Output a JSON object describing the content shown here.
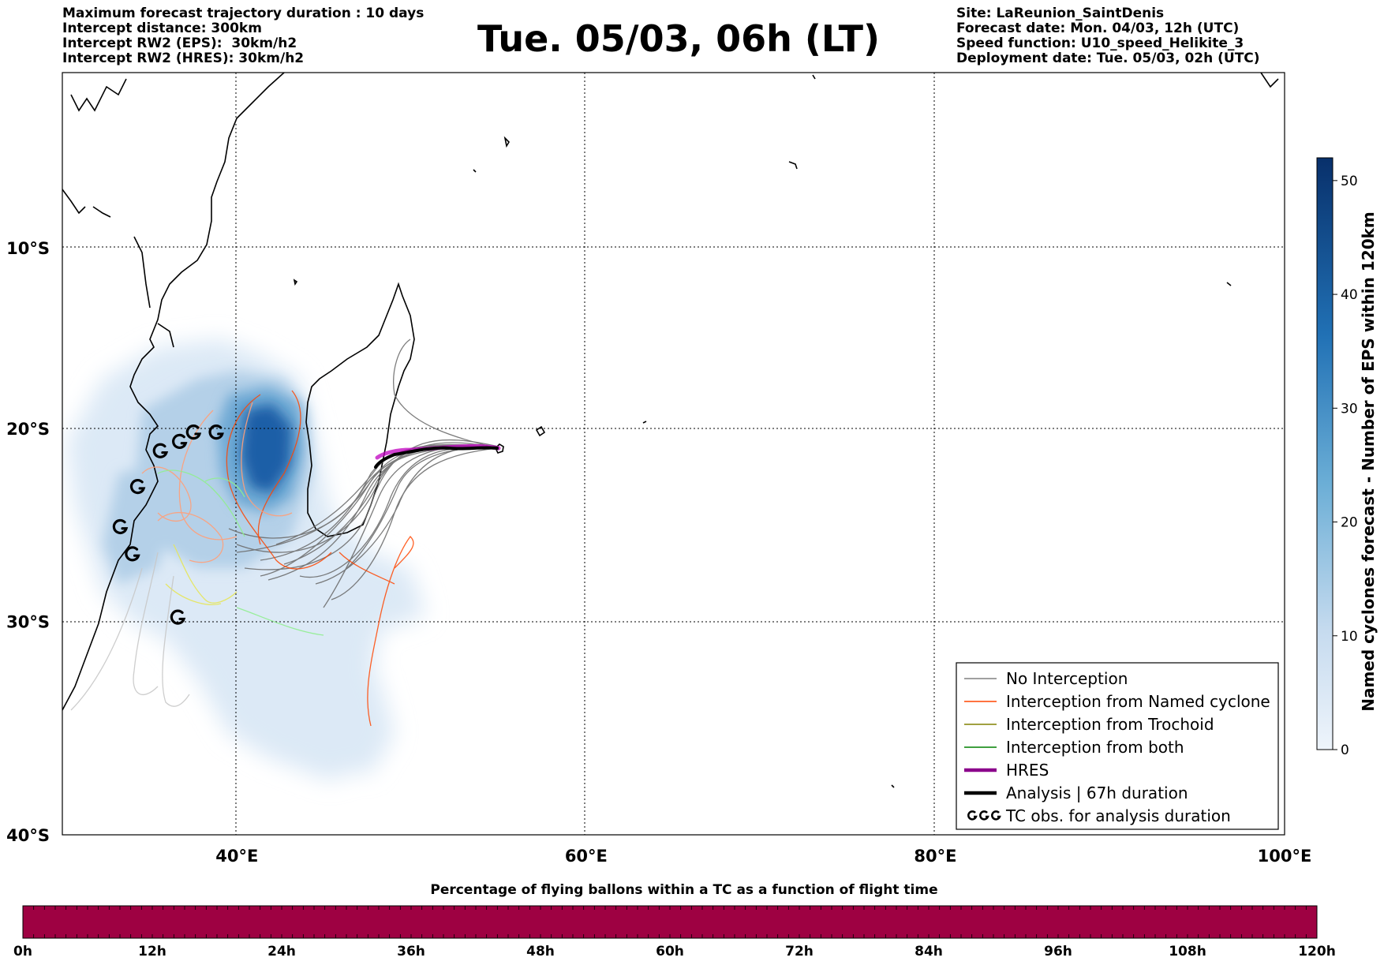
{
  "header_left": [
    "Maximum forecast trajectory duration : 10 days",
    "Intercept distance: 300km",
    "Intercept RW2 (EPS):  30km/h2",
    "Intercept RW2 (HRES): 30km/h2"
  ],
  "title": "Tue. 05/03, 06h (LT)",
  "header_right": [
    "Site: LaReunion_SaintDenis",
    "Forecast date: Mon. 04/03, 12h (UTC)",
    "Speed function: U10_speed_Helikite_3",
    "Deployment date: Tue. 05/03, 02h (UTC)"
  ],
  "map": {
    "lon_range": [
      30,
      100
    ],
    "lat_range": [
      -40,
      0
    ],
    "lon_ticks": [
      {
        "value": 40,
        "label": "40°E"
      },
      {
        "value": 60,
        "label": "60°E"
      },
      {
        "value": 80,
        "label": "80°E"
      },
      {
        "value": 100,
        "label": "100°E"
      }
    ],
    "lat_ticks": [
      {
        "value": -10,
        "label": "10°S"
      },
      {
        "value": -20,
        "label": "20°S"
      },
      {
        "value": -30,
        "label": "30°S"
      },
      {
        "value": -40,
        "label": "40°S"
      }
    ],
    "grid": "dotted"
  },
  "colorbar": {
    "label": "Named cyclones forecast - Number of EPS within 120km",
    "ticks": [
      0,
      10,
      20,
      30,
      40,
      50
    ],
    "range": [
      0,
      52
    ],
    "colormap": "Blues"
  },
  "legend": {
    "placement": "bottom-right",
    "items": [
      {
        "label": "No Interception",
        "color": "#808080",
        "style": "thin"
      },
      {
        "label": "Interception from Named cyclone",
        "color": "#ff4500",
        "style": "thin"
      },
      {
        "label": "Interception from Trochoid",
        "color": "#808000",
        "style": "thin"
      },
      {
        "label": "Interception from both",
        "color": "#008000",
        "style": "thin"
      },
      {
        "label": "HRES",
        "color": "#8b008b",
        "style": "thick"
      },
      {
        "label": "Analysis | 67h duration",
        "color": "#000000",
        "style": "thick"
      },
      {
        "label": "TC obs. for analysis duration",
        "color": "#000000",
        "style": "symbol"
      }
    ]
  },
  "percentage_bar": {
    "title": "Percentage of flying ballons within a TC as a function of flight time",
    "ticks": [
      "0h",
      "12h",
      "24h",
      "36h",
      "48h",
      "60h",
      "72h",
      "84h",
      "96h",
      "108h",
      "120h"
    ],
    "color": "#9e0142"
  },
  "tc_observations": [
    {
      "lon": 35.6,
      "lat": -21.2
    },
    {
      "lon": 36.7,
      "lat": -20.7
    },
    {
      "lon": 37.5,
      "lat": -20.2
    },
    {
      "lon": 38.8,
      "lat": -20.2
    },
    {
      "lon": 34.3,
      "lat": -23.1
    },
    {
      "lon": 33.3,
      "lat": -25.2
    },
    {
      "lon": 34.0,
      "lat": -26.6
    },
    {
      "lon": 36.6,
      "lat": -29.8
    }
  ],
  "site": {
    "name": "LaReunion_SaintDenis",
    "lon": 55.5,
    "lat": -21.1
  }
}
